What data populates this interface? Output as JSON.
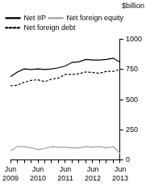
{
  "chart_data": {
    "type": "line",
    "ylabel": "$billion",
    "categories": [
      "Jun 2009",
      null,
      null,
      null,
      "Jun 2010",
      null,
      null,
      null,
      "Jun 2011",
      null,
      null,
      null,
      "Jun 2012",
      null,
      null,
      null,
      "Jun 2013"
    ],
    "series": [
      {
        "name": "Net IIP",
        "color": "#000000",
        "line_style": "solid",
        "values": [
          690,
          730,
          755,
          750,
          755,
          750,
          755,
          765,
          780,
          810,
          815,
          835,
          830,
          830,
          835,
          845,
          810
        ]
      },
      {
        "name": "Net foreign equity",
        "color": "#a0a0a0",
        "line_style": "solid",
        "values": [
          75,
          110,
          110,
          100,
          85,
          95,
          110,
          105,
          105,
          100,
          100,
          110,
          105,
          110,
          100,
          110,
          55
        ]
      },
      {
        "name": "Net foreign debt",
        "color": "#000000",
        "line_style": "dashed",
        "values": [
          615,
          620,
          645,
          660,
          665,
          650,
          670,
          680,
          710,
          710,
          715,
          730,
          725,
          720,
          735,
          735,
          750
        ]
      }
    ],
    "ylim": [
      0,
      1000
    ],
    "yticks": [
      0,
      250,
      500,
      750,
      1000
    ],
    "grid": false,
    "legend": "top-left"
  }
}
